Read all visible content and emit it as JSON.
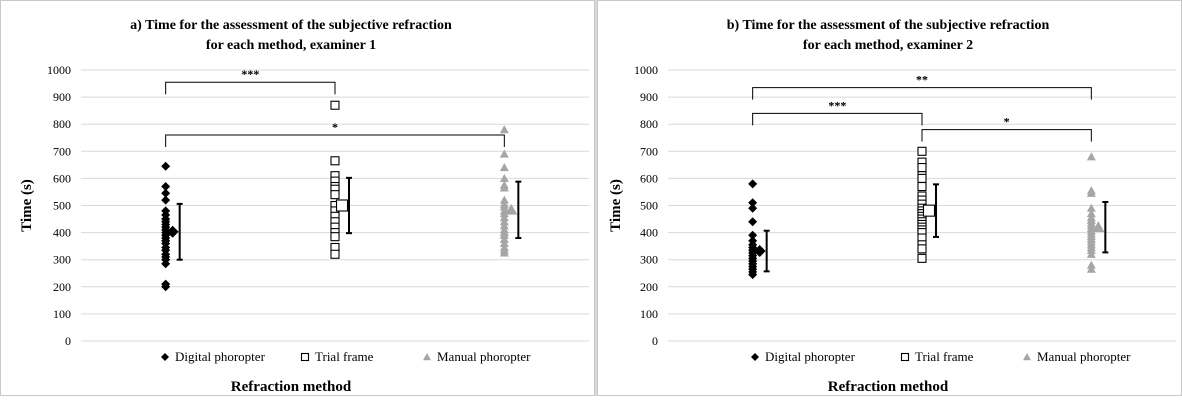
{
  "chart_data": [
    {
      "type": "scatter",
      "title": "a) Time for the assessment of the subjective refraction",
      "subtitle": "for each method, examiner 1",
      "xlabel": "Refraction method",
      "ylabel": "Time (s)",
      "ylim": [
        0,
        1000
      ],
      "yticks": [
        "0",
        "100",
        "200",
        "300",
        "400",
        "500",
        "600",
        "700",
        "800",
        "900",
        "1000"
      ],
      "grid": true,
      "legend_position": "bottom",
      "categories": [
        "Digital phoropter",
        "Trial frame",
        "Manual phoropter"
      ],
      "series": [
        {
          "name": "Digital phoropter",
          "marker": "diamond",
          "color": "#000000",
          "values": [
            645,
            570,
            545,
            520,
            480,
            465,
            450,
            440,
            430,
            420,
            410,
            400,
            390,
            380,
            370,
            360,
            345,
            335,
            320,
            310,
            300,
            285,
            210,
            200
          ],
          "mean": 403,
          "sd": 103
        },
        {
          "name": "Trial frame",
          "marker": "square-open",
          "color": "#000000",
          "values": [
            870,
            665,
            610,
            590,
            570,
            560,
            540,
            500,
            480,
            460,
            440,
            420,
            400,
            385,
            345,
            320
          ],
          "mean": 500,
          "sd": 102
        },
        {
          "name": "Manual phoropter",
          "marker": "triangle",
          "color": "#a6a6a6",
          "values": [
            780,
            690,
            640,
            600,
            575,
            565,
            520,
            505,
            495,
            480,
            470,
            455,
            440,
            425,
            410,
            400,
            390,
            375,
            360,
            345,
            335,
            325
          ],
          "mean": 484,
          "sd": 104
        }
      ],
      "significance": [
        {
          "from": "Digital phoropter",
          "to": "Trial frame",
          "label": "***",
          "y": 955
        },
        {
          "from": "Digital phoropter",
          "to": "Manual phoropter",
          "label": "*",
          "y": 760
        }
      ]
    },
    {
      "type": "scatter",
      "title": "b) Time for the assessment of the subjective refraction",
      "subtitle": "for each method, examiner 2",
      "xlabel": "Refraction method",
      "ylabel": "Time (s)",
      "ylim": [
        0,
        1000
      ],
      "yticks": [
        "0",
        "100",
        "200",
        "300",
        "400",
        "500",
        "600",
        "700",
        "800",
        "900",
        "1000"
      ],
      "grid": true,
      "legend_position": "bottom",
      "categories": [
        "Digital phoropter",
        "Trial frame",
        "Manual phoropter"
      ],
      "series": [
        {
          "name": "Digital phoropter",
          "marker": "diamond",
          "color": "#000000",
          "values": [
            580,
            510,
            490,
            440,
            390,
            370,
            355,
            345,
            335,
            325,
            315,
            305,
            295,
            285,
            275,
            265,
            255,
            245
          ],
          "mean": 332,
          "sd": 75
        },
        {
          "name": "Trial frame",
          "marker": "square-open",
          "color": "#000000",
          "values": [
            700,
            660,
            640,
            610,
            600,
            570,
            535,
            520,
            505,
            490,
            480,
            470,
            460,
            450,
            440,
            430,
            420,
            410,
            400,
            380,
            355,
            340,
            305
          ],
          "mean": 481,
          "sd": 97
        },
        {
          "name": "Manual phoropter",
          "marker": "triangle",
          "color": "#a6a6a6",
          "values": [
            680,
            555,
            545,
            490,
            470,
            455,
            445,
            435,
            425,
            415,
            405,
            395,
            385,
            375,
            365,
            355,
            345,
            335,
            320,
            280,
            265
          ],
          "mean": 420,
          "sd": 93
        }
      ],
      "significance": [
        {
          "from": "Digital phoropter",
          "to": "Manual phoropter",
          "label": "**",
          "y": 935
        },
        {
          "from": "Digital phoropter",
          "to": "Trial frame",
          "label": "***",
          "y": 840
        },
        {
          "from": "Trial frame",
          "to": "Manual phoropter",
          "label": "*",
          "y": 780
        }
      ]
    }
  ]
}
